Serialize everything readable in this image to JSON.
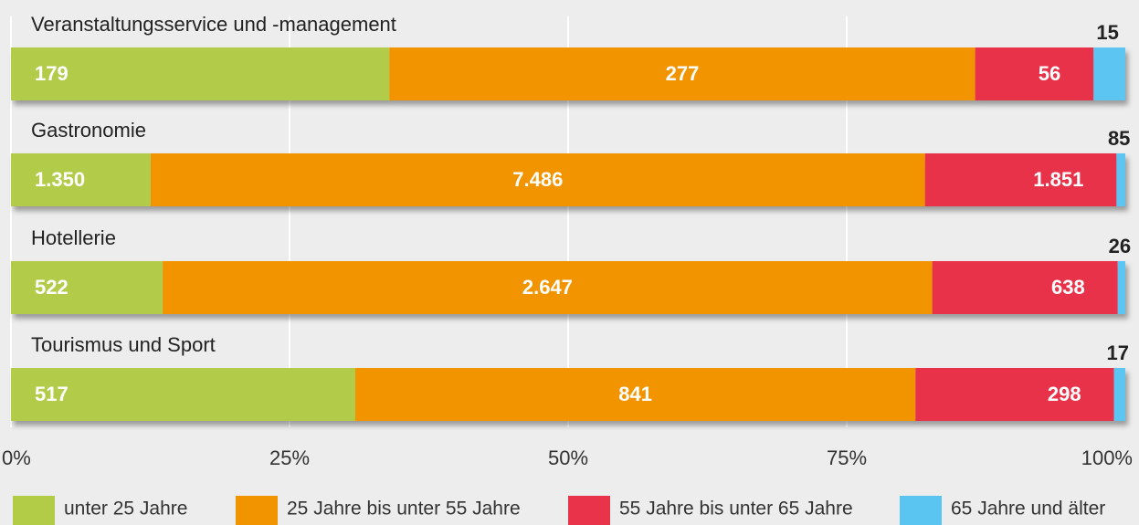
{
  "chart_data": {
    "type": "stacked_bar_100",
    "categories": [
      "Veranstaltungsservice und -management",
      "Gastronomie",
      "Hotellerie",
      "Tourismus und Sport"
    ],
    "series": [
      {
        "name": "unter 25 Jahre",
        "color": "#b2cc48",
        "values": [
          179,
          1350,
          522,
          517
        ],
        "value_labels": [
          "179",
          "1.350",
          "522",
          "517"
        ]
      },
      {
        "name": "25 Jahre bis unter 55 Jahre",
        "color": "#f29400",
        "values": [
          277,
          7486,
          2647,
          841
        ],
        "value_labels": [
          "277",
          "7.486",
          "2.647",
          "841"
        ]
      },
      {
        "name": "55 Jahre bis unter 65 Jahre",
        "color": "#e8334a",
        "values": [
          56,
          1851,
          638,
          298
        ],
        "value_labels": [
          "56",
          "1.851",
          "638",
          "298"
        ]
      },
      {
        "name": "65 Jahre und älter",
        "color": "#5bc5f2",
        "values": [
          15,
          85,
          26,
          17
        ]
      }
    ],
    "xlim": [
      0,
      100
    ],
    "xticks": [
      {
        "value": 0,
        "label": "0%"
      },
      {
        "value": 25,
        "label": "25%"
      },
      {
        "value": 50,
        "label": "50%"
      },
      {
        "value": 75,
        "label": "75%"
      },
      {
        "value": 100,
        "label": "100%"
      }
    ],
    "grid": true
  }
}
